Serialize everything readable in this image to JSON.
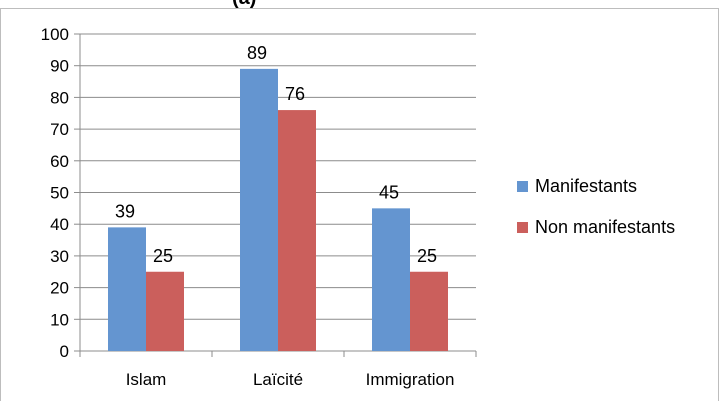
{
  "chart_data": {
    "type": "bar",
    "title_fragment": "(a)",
    "categories": [
      "Islam",
      "Laïcité",
      "Immigration"
    ],
    "series": [
      {
        "name": "Manifestants",
        "values": [
          39,
          89,
          45
        ],
        "color": "#6495d0"
      },
      {
        "name": "Non manifestants",
        "values": [
          25,
          76,
          25
        ],
        "color": "#cb5f5c"
      }
    ],
    "ylim": [
      0,
      100
    ],
    "yticks": [
      "0",
      "10",
      "20",
      "30",
      "40",
      "50",
      "60",
      "70",
      "80",
      "90",
      "100"
    ],
    "grid": true,
    "legend_position": "right"
  }
}
